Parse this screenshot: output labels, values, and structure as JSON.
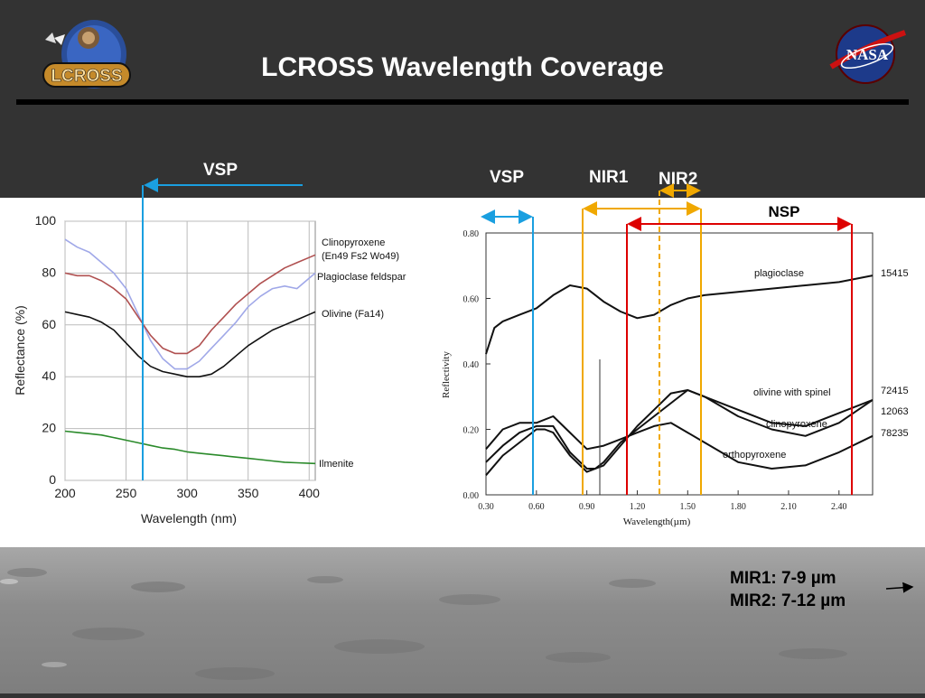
{
  "slide": {
    "title": "LCROSS Wavelength Coverage",
    "logo_left_text": "LCROSS",
    "logo_right_text": "NASA",
    "band_labels": {
      "vsp_left": "VSP",
      "vsp_right": "VSP",
      "nir1": "NIR1",
      "nir2": "NIR2",
      "nsp": "NSP"
    },
    "mir_notes": [
      "MIR1: 7-9 µm",
      "MIR2: 7-12 µm"
    ],
    "colors": {
      "background": "#333333",
      "vsp": "#1a9fe0",
      "nir": "#f0a800",
      "nsp": "#dd0000"
    }
  },
  "chart_data": [
    {
      "type": "line",
      "xlabel": "Wavelength (nm)",
      "ylabel": "Reflectance (%)",
      "xlim": [
        200,
        405
      ],
      "ylim": [
        0,
        100
      ],
      "xticks": [
        200,
        250,
        300,
        350,
        400
      ],
      "yticks": [
        0,
        20,
        40,
        60,
        80,
        100
      ],
      "grid": true,
      "series": [
        {
          "name": "Clinopyroxene (En49 Fs2 Wo49)",
          "color": "#a0a8e8",
          "x": [
            200,
            210,
            220,
            230,
            240,
            250,
            260,
            270,
            280,
            290,
            300,
            310,
            320,
            330,
            340,
            350,
            360,
            370,
            380,
            390,
            400,
            405
          ],
          "y": [
            93,
            90,
            88,
            84,
            80,
            74,
            64,
            54,
            47,
            43,
            43,
            46,
            51,
            56,
            61,
            67,
            71,
            74,
            75,
            74,
            78,
            80
          ]
        },
        {
          "name": "Plagioclase feldspar",
          "color": "#b05050",
          "x": [
            200,
            210,
            220,
            230,
            240,
            250,
            260,
            270,
            280,
            290,
            300,
            310,
            320,
            330,
            340,
            350,
            360,
            370,
            380,
            390,
            400,
            405
          ],
          "y": [
            80,
            79,
            79,
            77,
            74,
            70,
            63,
            56,
            51,
            49,
            49,
            52,
            58,
            63,
            68,
            72,
            76,
            79,
            82,
            84,
            86,
            87
          ]
        },
        {
          "name": "Olivine (Fa14)",
          "color": "#111111",
          "x": [
            200,
            210,
            220,
            230,
            240,
            250,
            260,
            270,
            280,
            290,
            300,
            310,
            320,
            330,
            340,
            350,
            360,
            370,
            380,
            390,
            400,
            405
          ],
          "y": [
            65,
            64,
            63,
            61,
            58,
            53,
            48,
            44,
            42,
            41,
            40,
            40,
            41,
            44,
            48,
            52,
            55,
            58,
            60,
            62,
            64,
            65
          ]
        },
        {
          "name": "Ilmenite",
          "color": "#2a8a2a",
          "x": [
            200,
            210,
            220,
            230,
            240,
            250,
            260,
            270,
            280,
            290,
            300,
            310,
            320,
            330,
            340,
            350,
            360,
            370,
            380,
            390,
            400,
            405
          ],
          "y": [
            19,
            18.5,
            18,
            17.5,
            16.5,
            15.5,
            14.5,
            13.5,
            12.5,
            12,
            11,
            10.5,
            10,
            9.5,
            9,
            8.5,
            8,
            7.5,
            7,
            6.8,
            6.6,
            6.5
          ]
        }
      ]
    },
    {
      "type": "line",
      "xlabel": "Wavelength(µm)",
      "ylabel": "Reflectivity",
      "xlim": [
        0.3,
        2.6
      ],
      "ylim": [
        0,
        0.8
      ],
      "xticks": [
        "0.30",
        "0.60",
        "0.90",
        "1.20",
        "1.50",
        "1.80",
        "2.10",
        "2.40"
      ],
      "yticks": [
        "0.00",
        "0.20",
        "0.40",
        "0.60",
        "0.80"
      ],
      "series": [
        {
          "name": "plagioclase",
          "sample": "15415",
          "color": "#111111",
          "x": [
            0.3,
            0.35,
            0.4,
            0.5,
            0.6,
            0.7,
            0.8,
            0.9,
            1.0,
            1.1,
            1.2,
            1.3,
            1.4,
            1.5,
            1.6,
            1.8,
            2.0,
            2.2,
            2.4,
            2.6
          ],
          "y": [
            0.43,
            0.51,
            0.53,
            0.55,
            0.57,
            0.61,
            0.64,
            0.63,
            0.59,
            0.56,
            0.54,
            0.55,
            0.58,
            0.6,
            0.61,
            0.62,
            0.63,
            0.64,
            0.65,
            0.67
          ]
        },
        {
          "name": "olivine with spinel",
          "sample": "72415",
          "color": "#111111",
          "x": [
            0.3,
            0.4,
            0.5,
            0.6,
            0.7,
            0.8,
            0.9,
            1.0,
            1.1,
            1.2,
            1.3,
            1.4,
            1.5,
            1.6,
            1.7,
            1.8,
            2.0,
            2.2,
            2.4,
            2.6
          ],
          "y": [
            0.14,
            0.2,
            0.22,
            0.22,
            0.24,
            0.19,
            0.14,
            0.15,
            0.17,
            0.19,
            0.21,
            0.22,
            0.19,
            0.16,
            0.13,
            0.1,
            0.08,
            0.09,
            0.13,
            0.18
          ]
        },
        {
          "name": "clinopyroxene",
          "sample": "12063",
          "color": "#111111",
          "x": [
            0.3,
            0.4,
            0.5,
            0.6,
            0.7,
            0.8,
            0.9,
            0.95,
            1.0,
            1.1,
            1.2,
            1.3,
            1.4,
            1.5,
            1.6,
            1.8,
            2.0,
            2.2,
            2.4,
            2.6
          ],
          "y": [
            0.1,
            0.15,
            0.19,
            0.21,
            0.21,
            0.13,
            0.08,
            0.08,
            0.1,
            0.16,
            0.2,
            0.24,
            0.28,
            0.32,
            0.3,
            0.24,
            0.2,
            0.18,
            0.22,
            0.29
          ]
        },
        {
          "name": "orthopyroxene",
          "sample": "78235",
          "color": "#111111",
          "x": [
            0.3,
            0.4,
            0.5,
            0.6,
            0.65,
            0.7,
            0.8,
            0.9,
            1.0,
            1.1,
            1.2,
            1.3,
            1.4,
            1.5,
            1.6,
            1.8,
            2.0,
            2.2,
            2.4,
            2.6
          ],
          "y": [
            0.06,
            0.12,
            0.16,
            0.2,
            0.2,
            0.19,
            0.12,
            0.07,
            0.09,
            0.15,
            0.21,
            0.26,
            0.31,
            0.32,
            0.3,
            0.26,
            0.22,
            0.21,
            0.25,
            0.29
          ]
        }
      ]
    }
  ]
}
